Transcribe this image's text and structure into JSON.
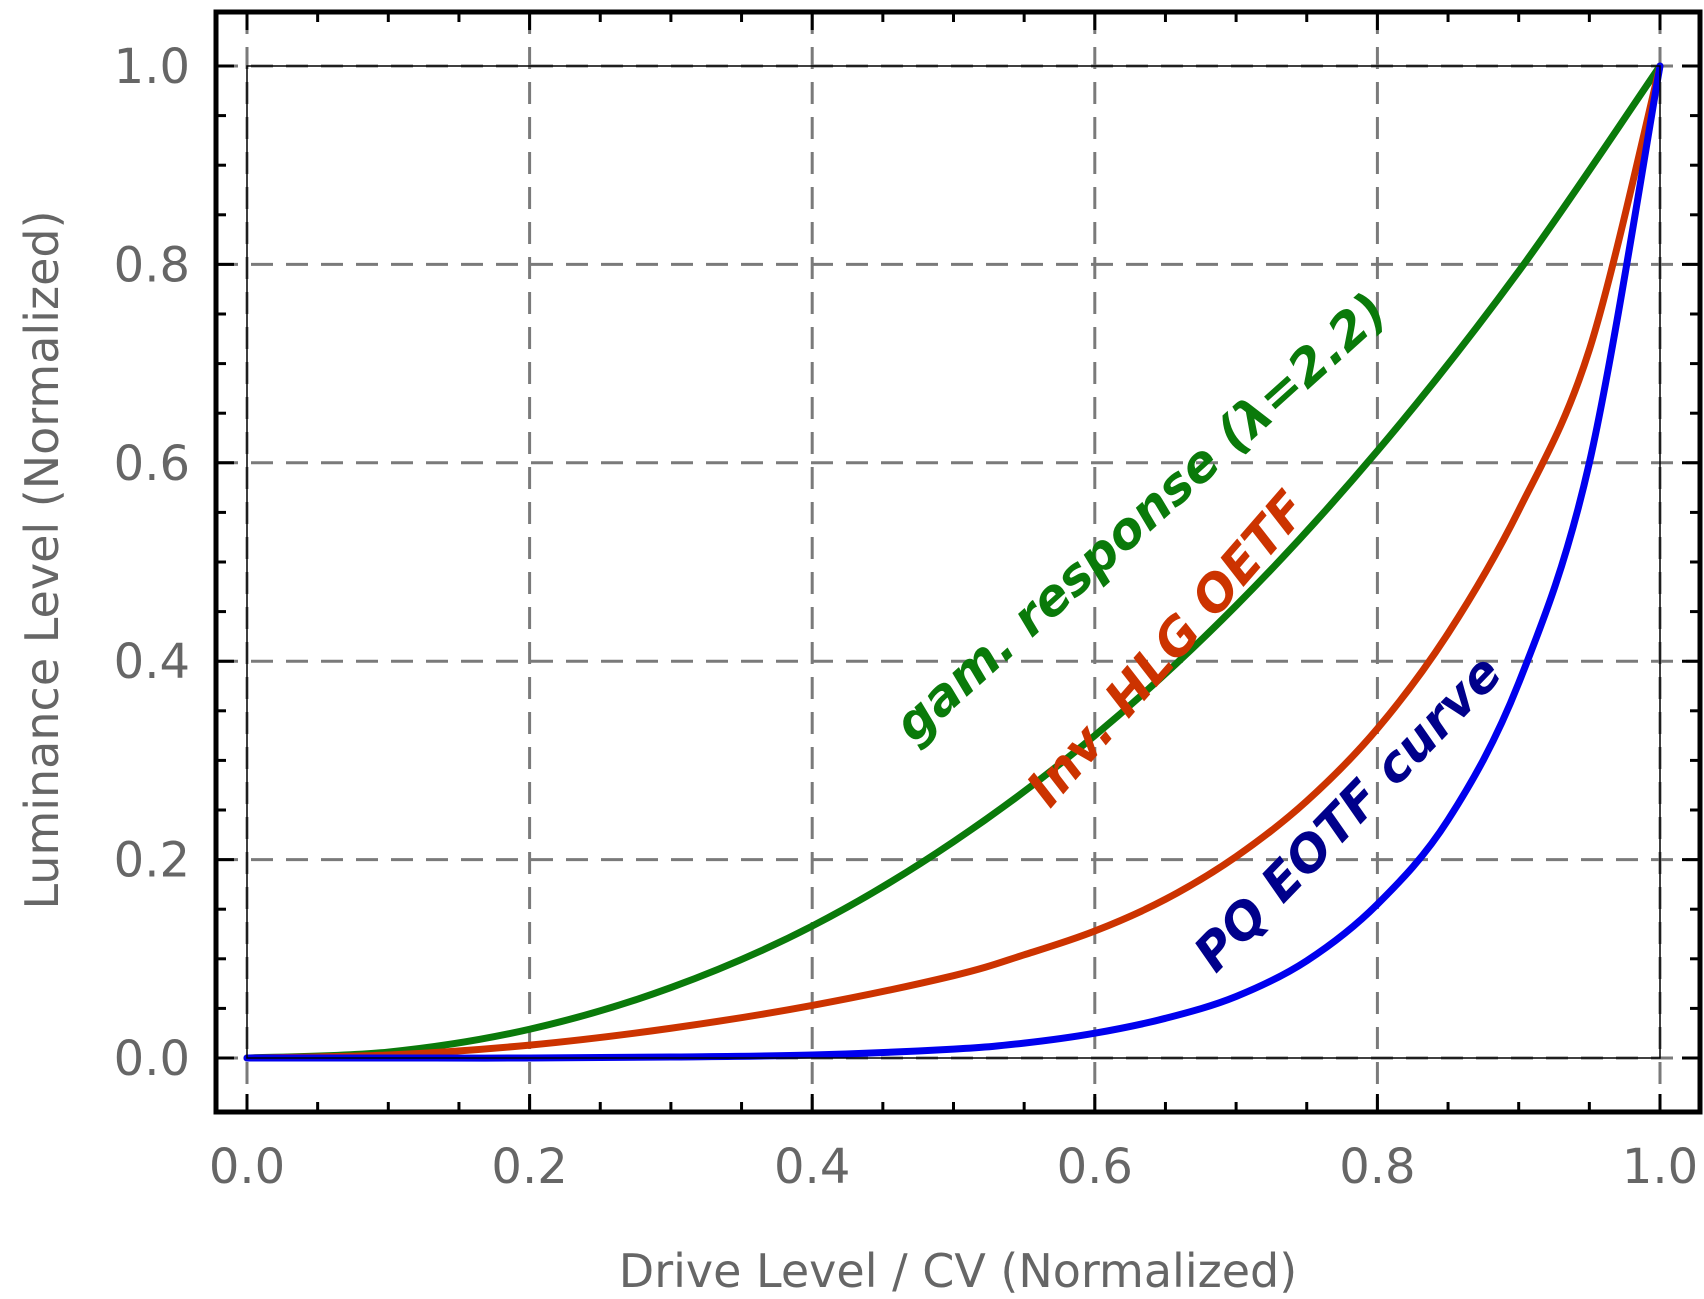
{
  "chart_data": {
    "type": "line",
    "title": "",
    "xlabel": "Drive Level / CV (Normalized)",
    "ylabel": "Luminance Level (Normalized)",
    "xlim": [
      0,
      1
    ],
    "ylim": [
      0,
      1
    ],
    "grid": true,
    "x_ticks": [
      "0.0",
      "0.2",
      "0.4",
      "0.6",
      "0.8",
      "1.0"
    ],
    "y_ticks": [
      "0.0",
      "0.2",
      "0.4",
      "0.6",
      "0.8",
      "1.0"
    ],
    "series": [
      {
        "name": "gam. response (λ=2.2)",
        "color": "#0a7a0a",
        "x": [
          0.0,
          0.1,
          0.2,
          0.3,
          0.4,
          0.5,
          0.6,
          0.7,
          0.8,
          0.9,
          1.0
        ],
        "y": [
          0.0,
          0.006,
          0.029,
          0.071,
          0.133,
          0.218,
          0.325,
          0.456,
          0.612,
          0.793,
          1.0
        ]
      },
      {
        "name": "Inv. HLG OETF",
        "color": "#cc3300",
        "x": [
          0.0,
          0.1,
          0.2,
          0.3,
          0.4,
          0.5,
          0.55,
          0.6,
          0.65,
          0.7,
          0.75,
          0.8,
          0.85,
          0.9,
          0.95,
          1.0
        ],
        "y": [
          0.0,
          0.003,
          0.013,
          0.03,
          0.053,
          0.083,
          0.104,
          0.128,
          0.16,
          0.203,
          0.259,
          0.332,
          0.428,
          0.552,
          0.714,
          1.0
        ]
      },
      {
        "name": "PQ EOTF curve",
        "color": "#0000ee",
        "x": [
          0.0,
          0.1,
          0.2,
          0.3,
          0.4,
          0.5,
          0.55,
          0.6,
          0.65,
          0.7,
          0.75,
          0.8,
          0.85,
          0.9,
          0.95,
          1.0
        ],
        "y": [
          0.0,
          0.0,
          0.0,
          0.001,
          0.003,
          0.009,
          0.015,
          0.025,
          0.04,
          0.062,
          0.098,
          0.155,
          0.24,
          0.378,
          0.6,
          1.0
        ]
      }
    ],
    "annotations": [
      {
        "text": "gam. response (λ=2.2)",
        "color": "#0a7a0a"
      },
      {
        "text": "Inv. HLG OETF",
        "color": "#cc3300"
      },
      {
        "text": "PQ EOTF curve",
        "color": "#00008b"
      }
    ]
  }
}
